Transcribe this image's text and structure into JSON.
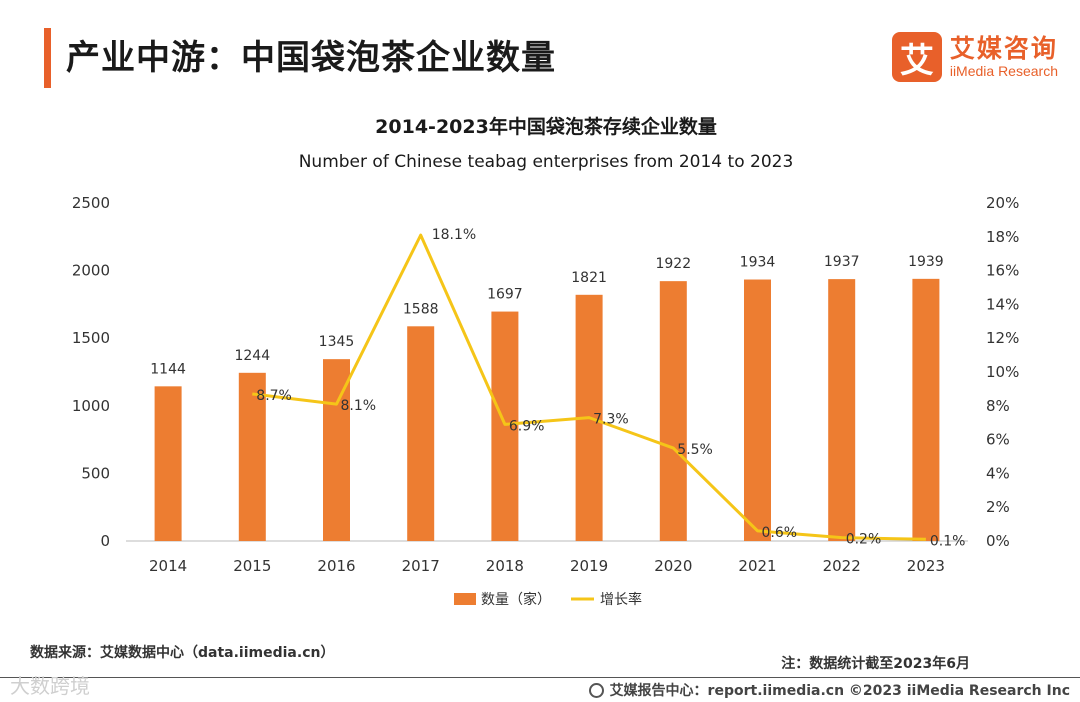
{
  "header": {
    "title": "产业中游：中国袋泡茶企业数量",
    "logo_mark": "艾",
    "logo_cn": "艾媒咨询",
    "logo_en": "iiMedia Research"
  },
  "chart_data": {
    "type": "bar",
    "title": "2014-2023年中国袋泡茶存续企业数量",
    "subtitle": "Number of Chinese teabag enterprises from 2014 to 2023",
    "categories": [
      "2014",
      "2015",
      "2016",
      "2017",
      "2018",
      "2019",
      "2020",
      "2021",
      "2022",
      "2023"
    ],
    "series": [
      {
        "name": "数量（家）",
        "type": "bar",
        "color": "#ed7d31",
        "values": [
          1144,
          1244,
          1345,
          1588,
          1697,
          1821,
          1922,
          1934,
          1937,
          1939
        ],
        "labels": [
          "1144",
          "1244",
          "1345",
          "1588",
          "1697",
          "1821",
          "1922",
          "1934",
          "1937",
          "1939"
        ]
      },
      {
        "name": "增长率",
        "type": "line",
        "color": "#f5c518",
        "axis": "right",
        "values": [
          null,
          8.7,
          8.1,
          18.1,
          6.9,
          7.3,
          5.5,
          0.6,
          0.2,
          0.1
        ],
        "labels": [
          null,
          "8.7%",
          "8.1%",
          "18.1%",
          "6.9%",
          "7.3%",
          "5.5%",
          "0.6%",
          "0.2%",
          "0.1%"
        ]
      }
    ],
    "ylim": [
      0,
      2500
    ],
    "y_ticks": [
      "0",
      "500",
      "1000",
      "1500",
      "2000",
      "2500"
    ],
    "y2lim": [
      0,
      20
    ],
    "y2_ticks": [
      "0%",
      "2%",
      "4%",
      "6%",
      "8%",
      "10%",
      "12%",
      "14%",
      "16%",
      "18%",
      "20%"
    ],
    "legend_position": "bottom"
  },
  "footer": {
    "source": "数据来源：艾媒数据中心（data.iimedia.cn）",
    "note": "注：数据统计截至2023年6月",
    "watermark": "大数跨境",
    "credit": "艾媒报告中心：report.iimedia.cn  ©2023  iiMedia Research  Inc"
  }
}
